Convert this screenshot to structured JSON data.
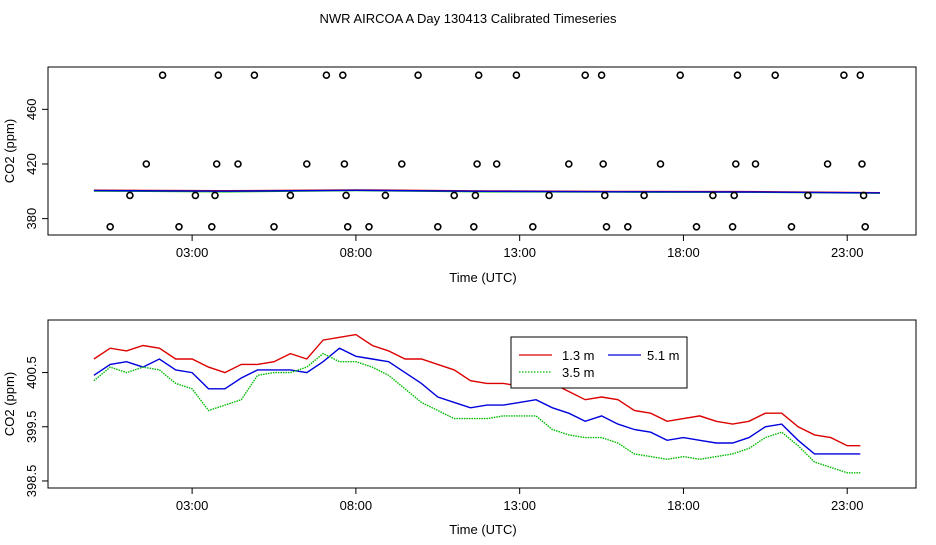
{
  "title": "NWR AIRCOA A  Day 130413  Calibrated Timeseries",
  "colors": {
    "h13": "#dd0000",
    "h35": "#00bb00",
    "h51": "#0000dd",
    "points": "#000000"
  },
  "chart_data": [
    {
      "type": "scatter",
      "id": "top",
      "xlabel": "Time (UTC)",
      "ylabel": "CO2 (ppm)",
      "xlim": [
        -1.4,
        25.1
      ],
      "ylim": [
        368,
        491
      ],
      "xticks": [
        3,
        8,
        13,
        18,
        23
      ],
      "xtick_labels": [
        "03:00",
        "08:00",
        "13:00",
        "18:00",
        "23:00"
      ],
      "yticks": [
        380,
        420,
        460
      ],
      "ytick_labels": [
        "380",
        "420",
        "460"
      ],
      "points": [
        {
          "x": 0.5,
          "y": 374
        },
        {
          "x": 1.1,
          "y": 397
        },
        {
          "x": 1.6,
          "y": 420
        },
        {
          "x": 2.1,
          "y": 485
        },
        {
          "x": 2.6,
          "y": 374
        },
        {
          "x": 3.1,
          "y": 397
        },
        {
          "x": 3.6,
          "y": 374
        },
        {
          "x": 3.7,
          "y": 397
        },
        {
          "x": 3.75,
          "y": 420
        },
        {
          "x": 3.8,
          "y": 485
        },
        {
          "x": 4.4,
          "y": 420
        },
        {
          "x": 4.9,
          "y": 485
        },
        {
          "x": 5.5,
          "y": 374
        },
        {
          "x": 6.0,
          "y": 397
        },
        {
          "x": 6.5,
          "y": 420
        },
        {
          "x": 7.1,
          "y": 485
        },
        {
          "x": 7.6,
          "y": 485
        },
        {
          "x": 7.65,
          "y": 420
        },
        {
          "x": 7.7,
          "y": 397
        },
        {
          "x": 7.75,
          "y": 374
        },
        {
          "x": 8.4,
          "y": 374
        },
        {
          "x": 8.9,
          "y": 397
        },
        {
          "x": 9.4,
          "y": 420
        },
        {
          "x": 9.9,
          "y": 485
        },
        {
          "x": 10.5,
          "y": 374
        },
        {
          "x": 11.0,
          "y": 397
        },
        {
          "x": 11.6,
          "y": 374
        },
        {
          "x": 11.65,
          "y": 397
        },
        {
          "x": 11.7,
          "y": 420
        },
        {
          "x": 11.75,
          "y": 485
        },
        {
          "x": 12.3,
          "y": 420
        },
        {
          "x": 12.9,
          "y": 485
        },
        {
          "x": 13.4,
          "y": 374
        },
        {
          "x": 13.9,
          "y": 397
        },
        {
          "x": 14.5,
          "y": 420
        },
        {
          "x": 15.0,
          "y": 485
        },
        {
          "x": 15.5,
          "y": 485
        },
        {
          "x": 15.55,
          "y": 420
        },
        {
          "x": 15.6,
          "y": 397
        },
        {
          "x": 15.65,
          "y": 374
        },
        {
          "x": 16.3,
          "y": 374
        },
        {
          "x": 16.8,
          "y": 397
        },
        {
          "x": 17.3,
          "y": 420
        },
        {
          "x": 17.9,
          "y": 485
        },
        {
          "x": 18.4,
          "y": 374
        },
        {
          "x": 18.9,
          "y": 397
        },
        {
          "x": 19.5,
          "y": 374
        },
        {
          "x": 19.55,
          "y": 397
        },
        {
          "x": 19.6,
          "y": 420
        },
        {
          "x": 19.65,
          "y": 485
        },
        {
          "x": 20.2,
          "y": 420
        },
        {
          "x": 20.8,
          "y": 485
        },
        {
          "x": 21.3,
          "y": 374
        },
        {
          "x": 21.8,
          "y": 397
        },
        {
          "x": 22.4,
          "y": 420
        },
        {
          "x": 22.9,
          "y": 485
        },
        {
          "x": 23.4,
          "y": 485
        },
        {
          "x": 23.45,
          "y": 420
        },
        {
          "x": 23.5,
          "y": 397
        },
        {
          "x": 23.55,
          "y": 374
        }
      ],
      "series": [
        {
          "name": "1.3 m",
          "color": "#dd0000",
          "x": [
            0,
            4,
            8,
            12,
            16,
            20,
            24
          ],
          "values": [
            400.8,
            400.4,
            401.0,
            400.3,
            399.9,
            399.8,
            399.0
          ]
        },
        {
          "name": "3.5 m",
          "color": "#00bb00",
          "x": [
            0,
            4,
            8,
            12,
            16,
            20,
            24
          ],
          "values": [
            400.2,
            399.6,
            400.6,
            399.6,
            399.4,
            399.3,
            398.6
          ]
        },
        {
          "name": "5.1 m",
          "color": "#0000dd",
          "x": [
            0,
            4,
            8,
            12,
            16,
            20,
            24
          ],
          "values": [
            400.5,
            400.1,
            400.7,
            400.0,
            399.6,
            399.5,
            398.8
          ]
        }
      ]
    },
    {
      "type": "line",
      "id": "bottom",
      "xlabel": "Time (UTC)",
      "ylabel": "CO2 (ppm)",
      "xlim": [
        -1.4,
        25.1
      ],
      "ylim": [
        398.37,
        401.47
      ],
      "xticks": [
        3,
        8,
        13,
        18,
        23
      ],
      "xtick_labels": [
        "03:00",
        "08:00",
        "13:00",
        "18:00",
        "23:00"
      ],
      "yticks": [
        398.5,
        399.5,
        400.5
      ],
      "ytick_labels": [
        "398.5",
        "399.5",
        "400.5"
      ],
      "legend": {
        "position": "top-center",
        "entries": [
          "1.3 m",
          "5.1 m",
          "3.5 m"
        ]
      },
      "series": [
        {
          "name": "1.3 m",
          "color": "#dd0000",
          "style": "solid",
          "x": [
            0.0,
            0.5,
            1.0,
            1.5,
            2.0,
            2.5,
            3.0,
            3.5,
            4.0,
            4.5,
            5.0,
            5.5,
            6.0,
            6.5,
            7.0,
            7.5,
            8.0,
            8.5,
            9.0,
            9.5,
            10.0,
            10.5,
            11.0,
            11.5,
            12.0,
            12.5,
            13.0,
            13.5,
            14.0,
            14.5,
            15.0,
            15.5,
            16.0,
            16.5,
            17.0,
            17.5,
            18.0,
            18.5,
            19.0,
            19.5,
            20.0,
            20.5,
            21.0,
            21.5,
            22.0,
            22.5,
            23.0,
            23.4
          ],
          "values": [
            400.75,
            400.95,
            400.9,
            401.0,
            400.95,
            400.75,
            400.75,
            400.6,
            400.5,
            400.65,
            400.65,
            400.7,
            400.85,
            400.75,
            401.1,
            401.15,
            401.2,
            401.0,
            400.9,
            400.75,
            400.75,
            400.65,
            400.55,
            400.35,
            400.3,
            400.3,
            400.25,
            400.25,
            400.3,
            400.15,
            400.0,
            400.05,
            400.0,
            399.8,
            399.75,
            399.6,
            399.65,
            399.7,
            399.6,
            399.55,
            399.6,
            399.75,
            399.75,
            399.5,
            399.35,
            399.3,
            399.15,
            399.15
          ]
        },
        {
          "name": "5.1 m",
          "color": "#0000dd",
          "style": "solid",
          "x": [
            0.0,
            0.5,
            1.0,
            1.5,
            2.0,
            2.5,
            3.0,
            3.5,
            4.0,
            4.5,
            5.0,
            5.5,
            6.0,
            6.5,
            7.0,
            7.5,
            8.0,
            8.5,
            9.0,
            9.5,
            10.0,
            10.5,
            11.0,
            11.5,
            12.0,
            12.5,
            13.0,
            13.5,
            14.0,
            14.5,
            15.0,
            15.5,
            16.0,
            16.5,
            17.0,
            17.5,
            18.0,
            18.5,
            19.0,
            19.5,
            20.0,
            20.5,
            21.0,
            21.5,
            22.0,
            22.5,
            23.0,
            23.4
          ],
          "values": [
            400.45,
            400.65,
            400.7,
            400.6,
            400.75,
            400.55,
            400.5,
            400.2,
            400.2,
            400.4,
            400.55,
            400.55,
            400.55,
            400.5,
            400.7,
            400.95,
            400.8,
            400.75,
            400.7,
            400.5,
            400.3,
            400.05,
            399.95,
            399.85,
            399.9,
            399.9,
            399.95,
            400.0,
            399.85,
            399.75,
            399.6,
            399.7,
            399.55,
            399.45,
            399.4,
            399.25,
            399.3,
            399.25,
            399.2,
            399.2,
            399.3,
            399.5,
            399.55,
            399.25,
            399.0,
            399.0,
            399.0,
            399.0
          ]
        },
        {
          "name": "3.5 m",
          "color": "#00bb00",
          "style": "dotted",
          "x": [
            0.0,
            0.5,
            1.0,
            1.5,
            2.0,
            2.5,
            3.0,
            3.5,
            4.0,
            4.5,
            5.0,
            5.5,
            6.0,
            6.5,
            7.0,
            7.5,
            8.0,
            8.5,
            9.0,
            9.5,
            10.0,
            10.5,
            11.0,
            11.5,
            12.0,
            12.5,
            13.0,
            13.5,
            14.0,
            14.5,
            15.0,
            15.5,
            16.0,
            16.5,
            17.0,
            17.5,
            18.0,
            18.5,
            19.0,
            19.5,
            20.0,
            20.5,
            21.0,
            21.5,
            22.0,
            22.5,
            23.0,
            23.4
          ],
          "values": [
            400.35,
            400.6,
            400.5,
            400.6,
            400.55,
            400.3,
            400.2,
            399.8,
            399.9,
            400.0,
            400.45,
            400.5,
            400.5,
            400.6,
            400.85,
            400.7,
            400.7,
            400.6,
            400.45,
            400.2,
            399.95,
            399.8,
            399.65,
            399.65,
            399.65,
            399.7,
            399.7,
            399.7,
            399.45,
            399.35,
            399.3,
            399.3,
            399.2,
            399.0,
            398.95,
            398.9,
            398.95,
            398.9,
            398.95,
            399.0,
            399.1,
            399.3,
            399.4,
            399.15,
            398.85,
            398.75,
            398.65,
            398.65
          ]
        }
      ]
    }
  ]
}
